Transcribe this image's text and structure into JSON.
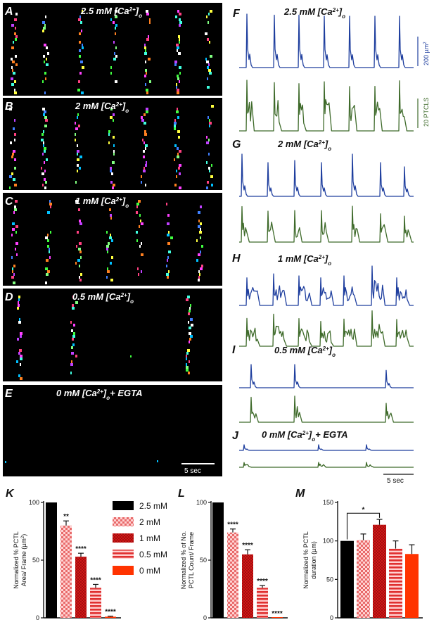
{
  "colors": {
    "area_trace": "#1e3e9e",
    "count_trace": "#3e6a2a",
    "concentration_2_5": "#000000",
    "concentration_2": "#e03a3a",
    "concentration_1": "#d01818",
    "concentration_0_5": "#e03030",
    "concentration_0": "#ff3300"
  },
  "raster_panels": [
    {
      "letter": "A",
      "title_main": "2.5 mM [Ca",
      "title_sup": "2+",
      "title_end": "]",
      "title_sub": "o",
      "title_tail": ""
    },
    {
      "letter": "B",
      "title_main": "2 mM [Ca",
      "title_sup": "2+",
      "title_end": "]",
      "title_sub": "o",
      "title_tail": ""
    },
    {
      "letter": "C",
      "title_main": "1 mM [Ca",
      "title_sup": "2+",
      "title_end": "]",
      "title_sub": "o",
      "title_tail": ""
    },
    {
      "letter": "D",
      "title_main": "0.5 mM [Ca",
      "title_sup": "2+",
      "title_end": "]",
      "title_sub": "o",
      "title_tail": ""
    },
    {
      "letter": "E",
      "title_main": "0 mM [Ca",
      "title_sup": "2+",
      "title_end": "]",
      "title_sub": "o",
      "title_tail": "+ EGTA"
    }
  ],
  "raster_scalebar": "5 sec",
  "trace_panels": [
    {
      "letter": "F",
      "title_main": "2.5 mM [Ca",
      "title_sup": "2+",
      "title_end": "]",
      "title_sub": "o",
      "title_tail": ""
    },
    {
      "letter": "G",
      "title_main": "2 mM [Ca",
      "title_sup": "2+",
      "title_end": "]",
      "title_sub": "o",
      "title_tail": ""
    },
    {
      "letter": "H",
      "title_main": "1 mM [Ca",
      "title_sup": "2+",
      "title_end": "]",
      "title_sub": "o",
      "title_tail": ""
    },
    {
      "letter": "I",
      "title_main": "0.5 mM [Ca",
      "title_sup": "2+",
      "title_end": "]",
      "title_sub": "o",
      "title_tail": ""
    },
    {
      "letter": "J",
      "title_main": "0 mM [Ca",
      "title_sup": "2+",
      "title_end": "]",
      "title_sub": "o",
      "title_tail": "+ EGTA"
    }
  ],
  "trace_scale": {
    "area": "200 µm",
    "area_sup": "2",
    "count": "20 PTCLS",
    "time": "5 sec"
  },
  "legend": [
    "2.5 mM",
    "2 mM",
    "1 mM",
    "0.5 mM",
    "0 mM"
  ],
  "chart_data": [
    {
      "panel": "K",
      "type": "bar",
      "categories": [
        "2.5 mM",
        "2 mM",
        "1 mM",
        "0.5 mM",
        "0 mM"
      ],
      "values": [
        100,
        80,
        53,
        26,
        1
      ],
      "errors": [
        0,
        4,
        3,
        3,
        0.5
      ],
      "significance": [
        "",
        "**",
        "****",
        "****",
        "****"
      ],
      "ylabel": [
        "Normalized % PCTL",
        "Area/ Frame (µm",
        "2",
        ")"
      ],
      "ylim": [
        0,
        100
      ],
      "yticks": [
        0,
        50,
        100
      ]
    },
    {
      "panel": "L",
      "type": "bar",
      "categories": [
        "2.5 mM",
        "2 mM",
        "1 mM",
        "0.5 mM",
        "0 mM"
      ],
      "values": [
        100,
        74,
        55,
        26,
        0
      ],
      "errors": [
        0,
        3,
        4,
        2,
        0
      ],
      "significance": [
        "",
        "****",
        "****",
        "****",
        "****"
      ],
      "ylabel": [
        "Normalized % of No.",
        "PCTL Count/ Frame"
      ],
      "ylim": [
        0,
        100
      ],
      "yticks": [
        0,
        50,
        100
      ]
    },
    {
      "panel": "M",
      "type": "bar",
      "categories": [
        "2.5 mM",
        "2 mM",
        "1 mM",
        "0.5 mM",
        "0 mM"
      ],
      "values": [
        100,
        101,
        121,
        90,
        83
      ],
      "errors": [
        0,
        8,
        7,
        10,
        12
      ],
      "bracket": {
        "from": "2.5 mM",
        "to": "1 mM",
        "label": "*"
      },
      "ylabel": [
        "Normalized % PCTL",
        "duration (µm)"
      ],
      "ylim": [
        0,
        150
      ],
      "yticks": [
        0,
        50,
        100,
        150
      ]
    }
  ]
}
